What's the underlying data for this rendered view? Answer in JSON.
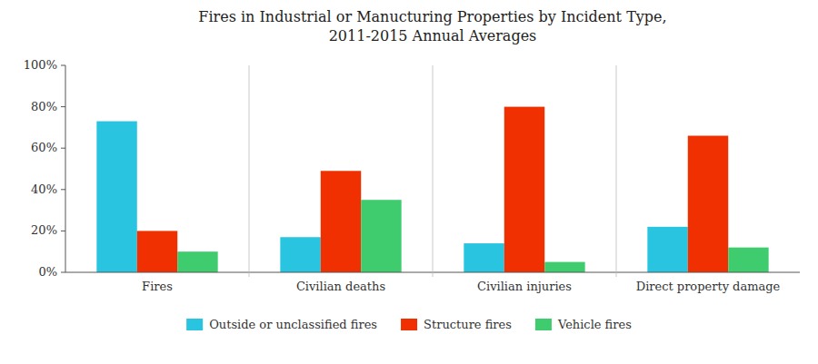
{
  "chart_data": {
    "type": "bar",
    "title": "Fires in Industrial or Manucturing Properties by Incident Type,\n2011-2015 Annual Averages",
    "categories": [
      "Fires",
      "Civilian deaths",
      "Civilian injuries",
      "Direct property damage"
    ],
    "series": [
      {
        "name": "Outside or unclassified fires",
        "color": "#29C4E0",
        "values": [
          73,
          17,
          14,
          22
        ]
      },
      {
        "name": "Structure fires",
        "color": "#F03000",
        "values": [
          20,
          49,
          80,
          66
        ]
      },
      {
        "name": "Vehicle fires",
        "color": "#3ECC6E",
        "values": [
          10,
          35,
          5,
          12
        ]
      }
    ],
    "ylim": [
      0,
      100
    ],
    "yticks": [
      {
        "value": 0,
        "label": "0%"
      },
      {
        "value": 20,
        "label": "20%"
      },
      {
        "value": 40,
        "label": "40%"
      },
      {
        "value": 60,
        "label": "60%"
      },
      {
        "value": 80,
        "label": "80%"
      },
      {
        "value": 100,
        "label": "100%"
      }
    ],
    "grid": false,
    "legend": "bottom"
  }
}
